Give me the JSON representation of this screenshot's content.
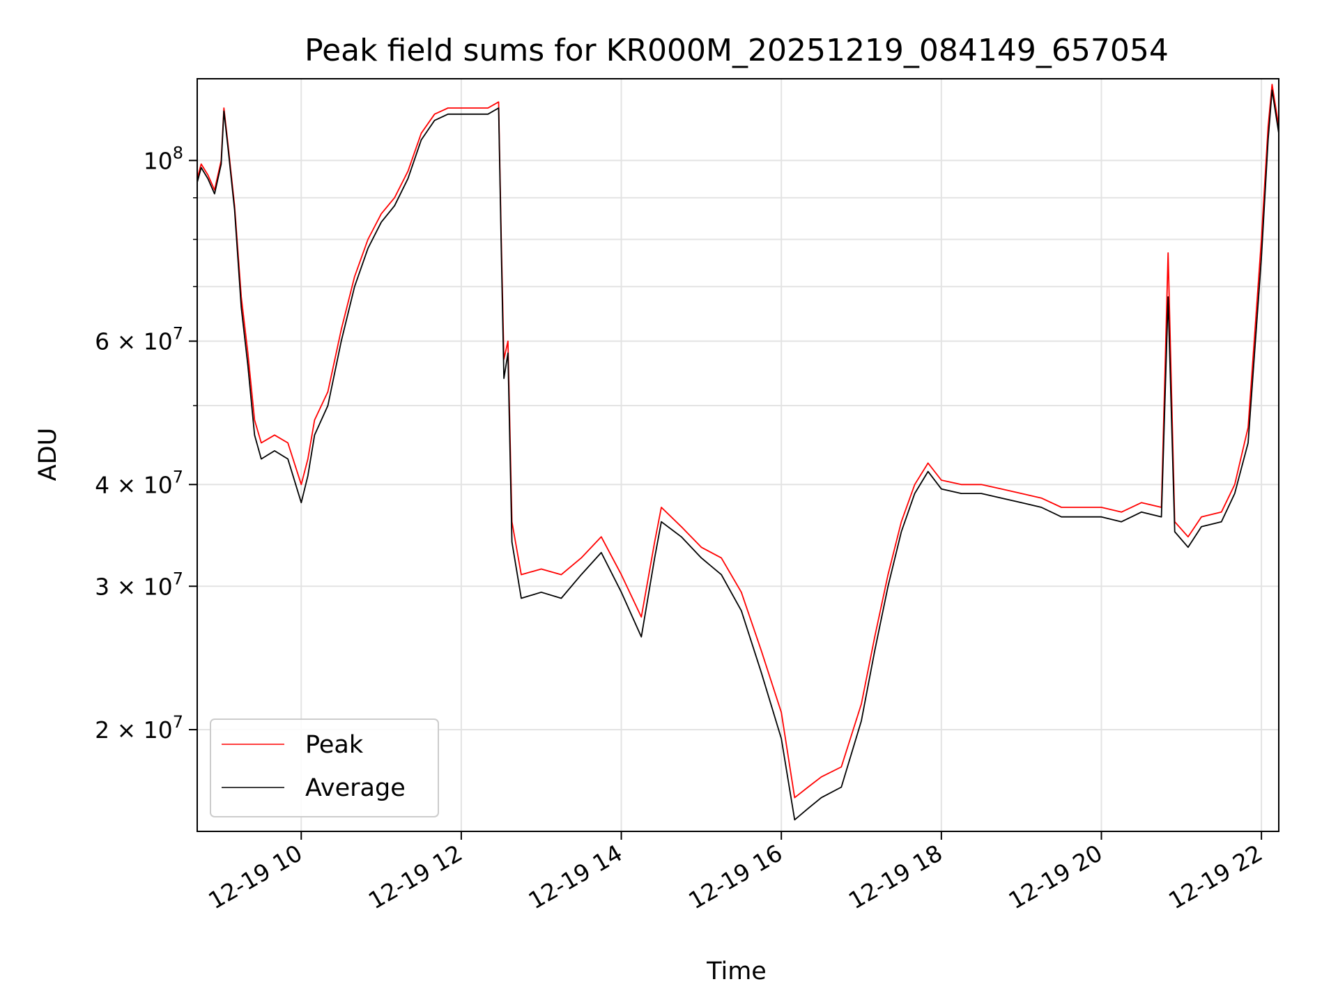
{
  "chart_data": {
    "type": "line",
    "title": "Peak field sums for KR000M_20251219_084149_657054",
    "xlabel": "Time",
    "ylabel": "ADU",
    "y_scale": "log",
    "ylim": [
      15000000,
      126000000
    ],
    "xlim": [
      "2025-12-19 08:42",
      "2025-12-19 22:13"
    ],
    "x_ticks": [
      {
        "t": "2025-12-19 10:00",
        "label": "12-19 10"
      },
      {
        "t": "2025-12-19 12:00",
        "label": "12-19 12"
      },
      {
        "t": "2025-12-19 14:00",
        "label": "12-19 14"
      },
      {
        "t": "2025-12-19 16:00",
        "label": "12-19 16"
      },
      {
        "t": "2025-12-19 18:00",
        "label": "12-19 18"
      },
      {
        "t": "2025-12-19 20:00",
        "label": "12-19 20"
      },
      {
        "t": "2025-12-19 22:00",
        "label": "12-19 22"
      }
    ],
    "y_major_ticks": [
      {
        "value": 100000000,
        "base": "10",
        "exp": "8",
        "mant": ""
      },
      {
        "value": 60000000,
        "base": "10",
        "exp": "7",
        "mant": "6 × "
      },
      {
        "value": 40000000,
        "base": "10",
        "exp": "7",
        "mant": "4 × "
      },
      {
        "value": 30000000,
        "base": "10",
        "exp": "7",
        "mant": "3 × "
      },
      {
        "value": 20000000,
        "base": "10",
        "exp": "7",
        "mant": "2 × "
      }
    ],
    "y_minor_gridlines": [
      90000000,
      80000000,
      70000000,
      50000000
    ],
    "grid": true,
    "legend_position": "lower-left",
    "series": [
      {
        "name": "Peak",
        "color": "#ff0000",
        "points": [
          [
            "2025-12-19 08:42",
            95000000
          ],
          [
            "2025-12-19 08:45",
            99000000
          ],
          [
            "2025-12-19 08:50",
            96000000
          ],
          [
            "2025-12-19 08:55",
            92000000
          ],
          [
            "2025-12-19 09:00",
            100000000
          ],
          [
            "2025-12-19 09:02",
            116000000
          ],
          [
            "2025-12-19 09:05",
            105000000
          ],
          [
            "2025-12-19 09:10",
            88000000
          ],
          [
            "2025-12-19 09:15",
            68000000
          ],
          [
            "2025-12-19 09:20",
            58000000
          ],
          [
            "2025-12-19 09:25",
            48000000
          ],
          [
            "2025-12-19 09:30",
            45000000
          ],
          [
            "2025-12-19 09:40",
            46000000
          ],
          [
            "2025-12-19 09:50",
            45000000
          ],
          [
            "2025-12-19 10:00",
            40000000
          ],
          [
            "2025-12-19 10:05",
            43000000
          ],
          [
            "2025-12-19 10:10",
            48000000
          ],
          [
            "2025-12-19 10:20",
            52000000
          ],
          [
            "2025-12-19 10:30",
            62000000
          ],
          [
            "2025-12-19 10:40",
            72000000
          ],
          [
            "2025-12-19 10:50",
            80000000
          ],
          [
            "2025-12-19 11:00",
            86000000
          ],
          [
            "2025-12-19 11:10",
            90000000
          ],
          [
            "2025-12-19 11:20",
            97000000
          ],
          [
            "2025-12-19 11:30",
            108000000
          ],
          [
            "2025-12-19 11:40",
            114000000
          ],
          [
            "2025-12-19 11:50",
            116000000
          ],
          [
            "2025-12-19 12:00",
            116000000
          ],
          [
            "2025-12-19 12:10",
            116000000
          ],
          [
            "2025-12-19 12:20",
            116000000
          ],
          [
            "2025-12-19 12:28",
            118000000
          ],
          [
            "2025-12-19 12:30",
            80000000
          ],
          [
            "2025-12-19 12:32",
            57000000
          ],
          [
            "2025-12-19 12:35",
            60000000
          ],
          [
            "2025-12-19 12:38",
            36000000
          ],
          [
            "2025-12-19 12:45",
            31000000
          ],
          [
            "2025-12-19 13:00",
            31500000
          ],
          [
            "2025-12-19 13:15",
            31000000
          ],
          [
            "2025-12-19 13:30",
            32500000
          ],
          [
            "2025-12-19 13:45",
            34500000
          ],
          [
            "2025-12-19 14:00",
            31000000
          ],
          [
            "2025-12-19 14:15",
            27500000
          ],
          [
            "2025-12-19 14:25",
            34000000
          ],
          [
            "2025-12-19 14:30",
            37500000
          ],
          [
            "2025-12-19 14:45",
            35500000
          ],
          [
            "2025-12-19 15:00",
            33500000
          ],
          [
            "2025-12-19 15:15",
            32500000
          ],
          [
            "2025-12-19 15:30",
            29500000
          ],
          [
            "2025-12-19 15:45",
            25000000
          ],
          [
            "2025-12-19 16:00",
            21000000
          ],
          [
            "2025-12-19 16:10",
            16500000
          ],
          [
            "2025-12-19 16:20",
            17000000
          ],
          [
            "2025-12-19 16:30",
            17500000
          ],
          [
            "2025-12-19 16:45",
            18000000
          ],
          [
            "2025-12-19 17:00",
            21500000
          ],
          [
            "2025-12-19 17:10",
            26000000
          ],
          [
            "2025-12-19 17:20",
            31000000
          ],
          [
            "2025-12-19 17:30",
            36000000
          ],
          [
            "2025-12-19 17:40",
            40000000
          ],
          [
            "2025-12-19 17:50",
            42500000
          ],
          [
            "2025-12-19 18:00",
            40500000
          ],
          [
            "2025-12-19 18:15",
            40000000
          ],
          [
            "2025-12-19 18:30",
            40000000
          ],
          [
            "2025-12-19 18:45",
            39500000
          ],
          [
            "2025-12-19 19:00",
            39000000
          ],
          [
            "2025-12-19 19:15",
            38500000
          ],
          [
            "2025-12-19 19:30",
            37500000
          ],
          [
            "2025-12-19 19:45",
            37500000
          ],
          [
            "2025-12-19 20:00",
            37500000
          ],
          [
            "2025-12-19 20:15",
            37000000
          ],
          [
            "2025-12-19 20:30",
            38000000
          ],
          [
            "2025-12-19 20:45",
            37500000
          ],
          [
            "2025-12-19 20:50",
            77000000
          ],
          [
            "2025-12-19 20:55",
            36000000
          ],
          [
            "2025-12-19 21:05",
            34500000
          ],
          [
            "2025-12-19 21:15",
            36500000
          ],
          [
            "2025-12-19 21:30",
            37000000
          ],
          [
            "2025-12-19 21:40",
            40000000
          ],
          [
            "2025-12-19 21:50",
            47000000
          ],
          [
            "2025-12-19 22:00",
            80000000
          ],
          [
            "2025-12-19 22:05",
            110000000
          ],
          [
            "2025-12-19 22:08",
            124000000
          ],
          [
            "2025-12-19 22:13",
            110000000
          ]
        ]
      },
      {
        "name": "Average",
        "color": "#000000",
        "points": [
          [
            "2025-12-19 08:42",
            94000000
          ],
          [
            "2025-12-19 08:45",
            98000000
          ],
          [
            "2025-12-19 08:50",
            95000000
          ],
          [
            "2025-12-19 08:55",
            91000000
          ],
          [
            "2025-12-19 09:00",
            99000000
          ],
          [
            "2025-12-19 09:02",
            115000000
          ],
          [
            "2025-12-19 09:05",
            104000000
          ],
          [
            "2025-12-19 09:10",
            87000000
          ],
          [
            "2025-12-19 09:15",
            66000000
          ],
          [
            "2025-12-19 09:20",
            56000000
          ],
          [
            "2025-12-19 09:25",
            46000000
          ],
          [
            "2025-12-19 09:30",
            43000000
          ],
          [
            "2025-12-19 09:40",
            44000000
          ],
          [
            "2025-12-19 09:50",
            43000000
          ],
          [
            "2025-12-19 10:00",
            38000000
          ],
          [
            "2025-12-19 10:05",
            41000000
          ],
          [
            "2025-12-19 10:10",
            46000000
          ],
          [
            "2025-12-19 10:20",
            50000000
          ],
          [
            "2025-12-19 10:30",
            60000000
          ],
          [
            "2025-12-19 10:40",
            70000000
          ],
          [
            "2025-12-19 10:50",
            78000000
          ],
          [
            "2025-12-19 11:00",
            84000000
          ],
          [
            "2025-12-19 11:10",
            88000000
          ],
          [
            "2025-12-19 11:20",
            95000000
          ],
          [
            "2025-12-19 11:30",
            106000000
          ],
          [
            "2025-12-19 11:40",
            112000000
          ],
          [
            "2025-12-19 11:50",
            114000000
          ],
          [
            "2025-12-19 12:00",
            114000000
          ],
          [
            "2025-12-19 12:10",
            114000000
          ],
          [
            "2025-12-19 12:20",
            114000000
          ],
          [
            "2025-12-19 12:28",
            116000000
          ],
          [
            "2025-12-19 12:30",
            78000000
          ],
          [
            "2025-12-19 12:32",
            54000000
          ],
          [
            "2025-12-19 12:35",
            58000000
          ],
          [
            "2025-12-19 12:38",
            34000000
          ],
          [
            "2025-12-19 12:45",
            29000000
          ],
          [
            "2025-12-19 13:00",
            29500000
          ],
          [
            "2025-12-19 13:15",
            29000000
          ],
          [
            "2025-12-19 13:30",
            31000000
          ],
          [
            "2025-12-19 13:45",
            33000000
          ],
          [
            "2025-12-19 14:00",
            29500000
          ],
          [
            "2025-12-19 14:15",
            26000000
          ],
          [
            "2025-12-19 14:25",
            32500000
          ],
          [
            "2025-12-19 14:30",
            36000000
          ],
          [
            "2025-12-19 14:45",
            34500000
          ],
          [
            "2025-12-19 15:00",
            32500000
          ],
          [
            "2025-12-19 15:15",
            31000000
          ],
          [
            "2025-12-19 15:30",
            28000000
          ],
          [
            "2025-12-19 15:45",
            23500000
          ],
          [
            "2025-12-19 16:00",
            19500000
          ],
          [
            "2025-12-19 16:10",
            15500000
          ],
          [
            "2025-12-19 16:20",
            16000000
          ],
          [
            "2025-12-19 16:30",
            16500000
          ],
          [
            "2025-12-19 16:45",
            17000000
          ],
          [
            "2025-12-19 17:00",
            20500000
          ],
          [
            "2025-12-19 17:10",
            25000000
          ],
          [
            "2025-12-19 17:20",
            30000000
          ],
          [
            "2025-12-19 17:30",
            35000000
          ],
          [
            "2025-12-19 17:40",
            39000000
          ],
          [
            "2025-12-19 17:50",
            41500000
          ],
          [
            "2025-12-19 18:00",
            39500000
          ],
          [
            "2025-12-19 18:15",
            39000000
          ],
          [
            "2025-12-19 18:30",
            39000000
          ],
          [
            "2025-12-19 18:45",
            38500000
          ],
          [
            "2025-12-19 19:00",
            38000000
          ],
          [
            "2025-12-19 19:15",
            37500000
          ],
          [
            "2025-12-19 19:30",
            36500000
          ],
          [
            "2025-12-19 19:45",
            36500000
          ],
          [
            "2025-12-19 20:00",
            36500000
          ],
          [
            "2025-12-19 20:15",
            36000000
          ],
          [
            "2025-12-19 20:30",
            37000000
          ],
          [
            "2025-12-19 20:45",
            36500000
          ],
          [
            "2025-12-19 20:50",
            68000000
          ],
          [
            "2025-12-19 20:55",
            35000000
          ],
          [
            "2025-12-19 21:05",
            33500000
          ],
          [
            "2025-12-19 21:15",
            35500000
          ],
          [
            "2025-12-19 21:30",
            36000000
          ],
          [
            "2025-12-19 21:40",
            39000000
          ],
          [
            "2025-12-19 21:50",
            45000000
          ],
          [
            "2025-12-19 22:00",
            76000000
          ],
          [
            "2025-12-19 22:05",
            106000000
          ],
          [
            "2025-12-19 22:08",
            122000000
          ],
          [
            "2025-12-19 22:13",
            108000000
          ]
        ]
      }
    ]
  }
}
